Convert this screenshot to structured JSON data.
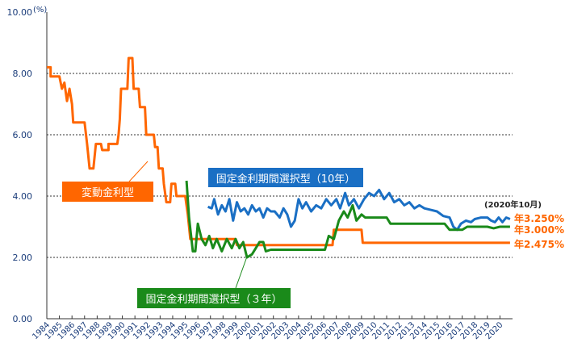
{
  "chart_data": {
    "type": "line",
    "title": "",
    "xlabel": "",
    "ylabel": "(%)",
    "ylim": [
      0,
      10
    ],
    "yticks": [
      "0.00",
      "2.00",
      "4.00",
      "6.00",
      "8.00",
      "10.00"
    ],
    "xlim": [
      1984,
      2021
    ],
    "xticks": [
      "1984",
      "1985",
      "1986",
      "1987",
      "1988",
      "1989",
      "1990",
      "1991",
      "1992",
      "1993",
      "1994",
      "1995",
      "1996",
      "1997",
      "1998",
      "1999",
      "2000",
      "2001",
      "2002",
      "2003",
      "2004",
      "2005",
      "2006",
      "2007",
      "2008",
      "2009",
      "2010",
      "2011",
      "2012",
      "2013",
      "2014",
      "2015",
      "2016",
      "2017",
      "2018",
      "2019",
      "2020"
    ],
    "grid": "horizontal dotted",
    "date_note": "(2020年10月)",
    "series": [
      {
        "name": "変動金利型",
        "color": "#ff6600",
        "end_label": "年2.475%",
        "points": [
          [
            1984.0,
            8.2
          ],
          [
            1984.3,
            8.2
          ],
          [
            1984.3,
            7.9
          ],
          [
            1985.0,
            7.9
          ],
          [
            1985.2,
            7.5
          ],
          [
            1985.4,
            7.7
          ],
          [
            1985.6,
            7.1
          ],
          [
            1985.8,
            7.5
          ],
          [
            1986.0,
            7.0
          ],
          [
            1986.1,
            6.4
          ],
          [
            1987.0,
            6.4
          ],
          [
            1987.2,
            5.7
          ],
          [
            1987.4,
            4.9
          ],
          [
            1987.7,
            4.9
          ],
          [
            1987.9,
            5.7
          ],
          [
            1988.3,
            5.7
          ],
          [
            1988.4,
            5.5
          ],
          [
            1988.9,
            5.5
          ],
          [
            1988.9,
            5.7
          ],
          [
            1989.6,
            5.7
          ],
          [
            1989.7,
            6.0
          ],
          [
            1989.8,
            6.5
          ],
          [
            1989.9,
            7.5
          ],
          [
            1990.4,
            7.5
          ],
          [
            1990.5,
            8.5
          ],
          [
            1990.8,
            8.5
          ],
          [
            1990.9,
            7.5
          ],
          [
            1991.3,
            7.5
          ],
          [
            1991.4,
            6.9
          ],
          [
            1991.8,
            6.9
          ],
          [
            1991.9,
            6.0
          ],
          [
            1992.5,
            6.0
          ],
          [
            1992.6,
            5.6
          ],
          [
            1992.8,
            5.6
          ],
          [
            1992.9,
            4.9
          ],
          [
            1993.2,
            4.9
          ],
          [
            1993.3,
            4.4
          ],
          [
            1993.5,
            3.8
          ],
          [
            1993.8,
            3.8
          ],
          [
            1993.9,
            4.4
          ],
          [
            1994.2,
            4.4
          ],
          [
            1994.3,
            4.0
          ],
          [
            1995.0,
            4.0
          ],
          [
            1995.2,
            3.4
          ],
          [
            1995.4,
            2.6
          ],
          [
            1999.0,
            2.6
          ],
          [
            1999.1,
            2.4
          ],
          [
            2006.7,
            2.4
          ],
          [
            2006.8,
            2.9
          ],
          [
            2009.0,
            2.9
          ],
          [
            2009.1,
            2.475
          ],
          [
            2020.8,
            2.475
          ]
        ]
      },
      {
        "name": "固定金利期間選択型（３年）",
        "color": "#1a8a1a",
        "end_label": "年3.000%",
        "points": [
          [
            1995.1,
            4.5
          ],
          [
            1995.3,
            3.3
          ],
          [
            1995.6,
            2.2
          ],
          [
            1995.8,
            2.2
          ],
          [
            1996.0,
            3.1
          ],
          [
            1996.3,
            2.6
          ],
          [
            1996.6,
            2.4
          ],
          [
            1996.9,
            2.7
          ],
          [
            1997.2,
            2.3
          ],
          [
            1997.5,
            2.6
          ],
          [
            1997.9,
            2.2
          ],
          [
            1998.3,
            2.6
          ],
          [
            1998.7,
            2.3
          ],
          [
            1999.0,
            2.6
          ],
          [
            1999.3,
            2.3
          ],
          [
            1999.6,
            2.5
          ],
          [
            1999.9,
            2.0
          ],
          [
            2000.3,
            2.1
          ],
          [
            2000.6,
            2.3
          ],
          [
            2000.9,
            2.5
          ],
          [
            2001.2,
            2.5
          ],
          [
            2001.4,
            2.2
          ],
          [
            2001.8,
            2.25
          ],
          [
            2006.1,
            2.25
          ],
          [
            2006.4,
            2.7
          ],
          [
            2006.8,
            2.6
          ],
          [
            2007.2,
            3.2
          ],
          [
            2007.6,
            3.5
          ],
          [
            2007.9,
            3.3
          ],
          [
            2008.3,
            3.7
          ],
          [
            2008.6,
            3.2
          ],
          [
            2009.0,
            3.4
          ],
          [
            2009.3,
            3.3
          ],
          [
            2010.0,
            3.3
          ],
          [
            2011.0,
            3.3
          ],
          [
            2011.3,
            3.1
          ],
          [
            2015.6,
            3.1
          ],
          [
            2016.0,
            2.9
          ],
          [
            2017.0,
            2.9
          ],
          [
            2017.4,
            3.0
          ],
          [
            2019.0,
            3.0
          ],
          [
            2019.5,
            2.95
          ],
          [
            2020.0,
            3.0
          ],
          [
            2020.8,
            3.0
          ]
        ]
      },
      {
        "name": "固定金利期間選択型（10年）",
        "color": "#1a6fc4",
        "end_label": "年3.250%",
        "points": [
          [
            1996.8,
            3.65
          ],
          [
            1997.1,
            3.6
          ],
          [
            1997.3,
            3.9
          ],
          [
            1997.6,
            3.4
          ],
          [
            1997.9,
            3.7
          ],
          [
            1998.2,
            3.5
          ],
          [
            1998.5,
            3.9
          ],
          [
            1998.8,
            3.2
          ],
          [
            1999.1,
            3.8
          ],
          [
            1999.4,
            3.5
          ],
          [
            1999.7,
            3.6
          ],
          [
            2000.0,
            3.4
          ],
          [
            2000.3,
            3.7
          ],
          [
            2000.6,
            3.5
          ],
          [
            2000.9,
            3.6
          ],
          [
            2001.2,
            3.3
          ],
          [
            2001.5,
            3.6
          ],
          [
            2001.8,
            3.5
          ],
          [
            2002.1,
            3.5
          ],
          [
            2002.5,
            3.3
          ],
          [
            2002.8,
            3.6
          ],
          [
            2003.1,
            3.4
          ],
          [
            2003.4,
            3.0
          ],
          [
            2003.7,
            3.2
          ],
          [
            2004.0,
            3.9
          ],
          [
            2004.3,
            3.6
          ],
          [
            2004.6,
            3.8
          ],
          [
            2005.0,
            3.5
          ],
          [
            2005.4,
            3.7
          ],
          [
            2005.8,
            3.6
          ],
          [
            2006.2,
            3.9
          ],
          [
            2006.6,
            3.7
          ],
          [
            2007.0,
            3.9
          ],
          [
            2007.3,
            3.6
          ],
          [
            2007.7,
            4.1
          ],
          [
            2008.0,
            3.7
          ],
          [
            2008.4,
            3.9
          ],
          [
            2008.8,
            3.6
          ],
          [
            2009.2,
            3.9
          ],
          [
            2009.6,
            4.1
          ],
          [
            2010.0,
            4.0
          ],
          [
            2010.4,
            4.2
          ],
          [
            2010.8,
            3.9
          ],
          [
            2011.2,
            4.1
          ],
          [
            2011.6,
            3.8
          ],
          [
            2012.0,
            3.9
          ],
          [
            2012.4,
            3.7
          ],
          [
            2012.8,
            3.8
          ],
          [
            2013.2,
            3.6
          ],
          [
            2013.6,
            3.7
          ],
          [
            2014.0,
            3.6
          ],
          [
            2014.5,
            3.55
          ],
          [
            2015.0,
            3.5
          ],
          [
            2015.5,
            3.35
          ],
          [
            2016.0,
            3.3
          ],
          [
            2016.3,
            3.0
          ],
          [
            2016.6,
            2.9
          ],
          [
            2016.9,
            3.1
          ],
          [
            2017.3,
            3.2
          ],
          [
            2017.7,
            3.15
          ],
          [
            2018.0,
            3.25
          ],
          [
            2018.5,
            3.3
          ],
          [
            2019.0,
            3.3
          ],
          [
            2019.3,
            3.2
          ],
          [
            2019.6,
            3.15
          ],
          [
            2019.9,
            3.3
          ],
          [
            2020.2,
            3.15
          ],
          [
            2020.5,
            3.3
          ],
          [
            2020.8,
            3.25
          ]
        ]
      }
    ]
  },
  "annotations": {
    "floating": "変動金利型",
    "fixed10": "固定金利期間選択型（10年）",
    "fixed3": "固定金利期間選択型（３年）"
  }
}
